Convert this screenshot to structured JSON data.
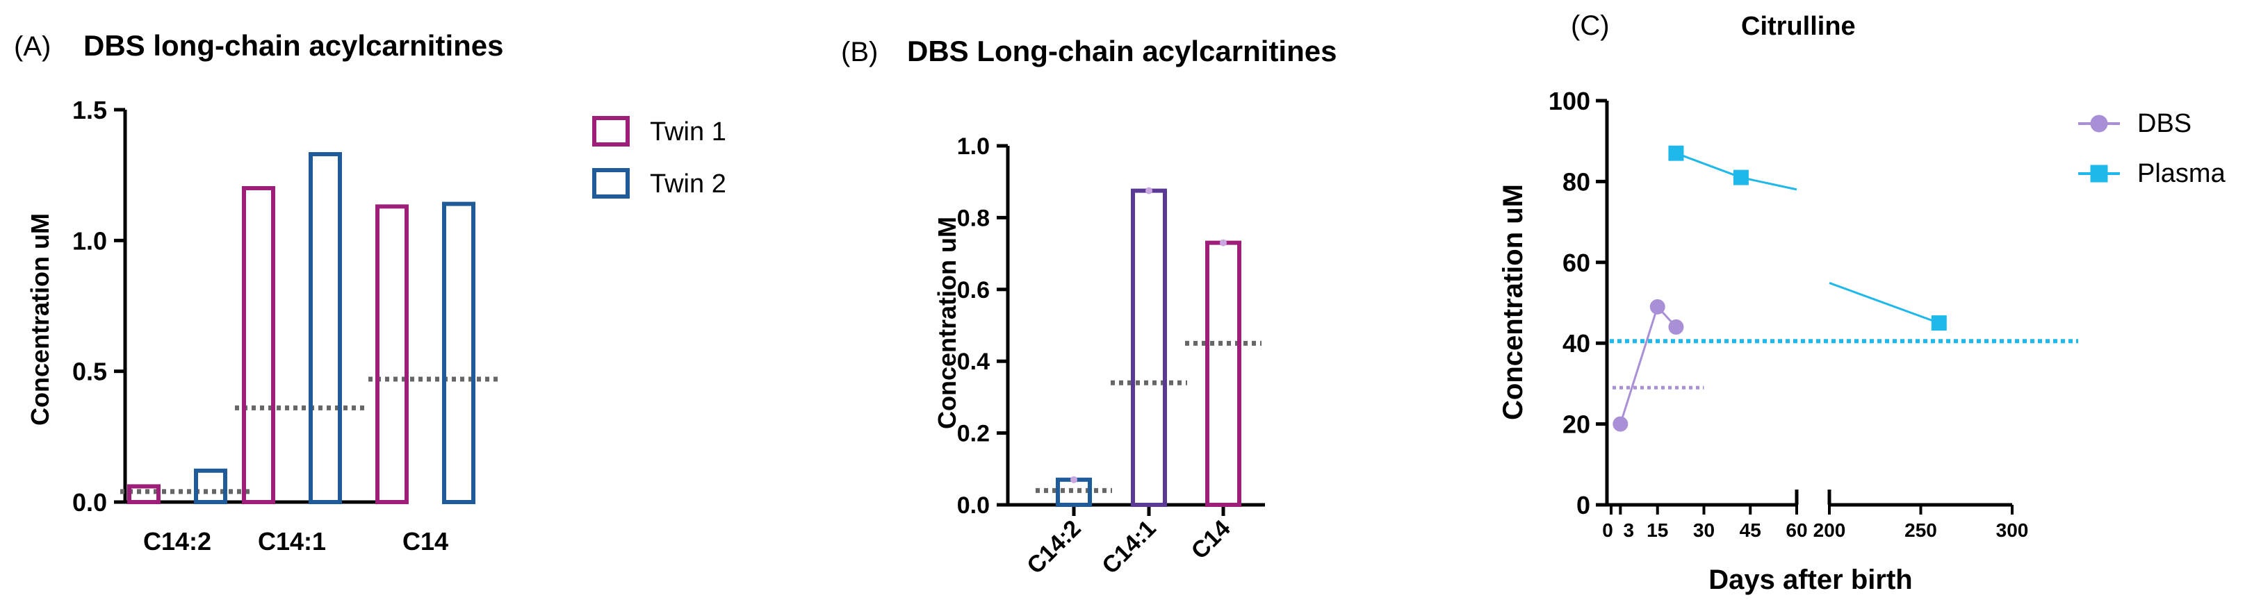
{
  "panels": [
    {
      "panel_label": "(A)",
      "title": "DBS long-chain acylcarnitines"
    },
    {
      "panel_label": "(B)",
      "title": "DBS Long-chain acylcarnitines"
    },
    {
      "panel_label": "(C)",
      "title": "Citrulline"
    }
  ],
  "colors": {
    "twin1": "#9e1f7a",
    "twin2": "#1f5a99",
    "purple_bar": "#5b3a96",
    "dbs": "#a98fd6",
    "plasma": "#1fb8ea",
    "reference_line": "#666666",
    "axis": "#000000"
  },
  "chart_data": [
    {
      "type": "bar",
      "title": "DBS long-chain acylcarnitines",
      "ylabel": "Concentration uM",
      "xlabel": "",
      "categories": [
        "C14:2",
        "C14:1",
        "C14"
      ],
      "series": [
        {
          "name": "Twin 1",
          "values": [
            0.06,
            1.2,
            1.13
          ]
        },
        {
          "name": "Twin 2",
          "values": [
            0.12,
            1.33,
            1.14
          ]
        }
      ],
      "reference_lines": [
        0.04,
        0.36,
        0.47
      ],
      "ylim": [
        0,
        1.5
      ],
      "yticks": [
        "0.0",
        "0.5",
        "1.0",
        "1.5"
      ],
      "legend": "right",
      "grid": false
    },
    {
      "type": "bar",
      "title": "DBS Long-chain acylcarnitines",
      "ylabel": "Concentration uM",
      "xlabel": "",
      "categories": [
        "C14:2",
        "C14:1",
        "C14"
      ],
      "values": [
        0.07,
        0.875,
        0.73
      ],
      "reference_lines": [
        0.04,
        0.34,
        0.45
      ],
      "ylim": [
        0,
        1.0
      ],
      "yticks": [
        "0.0",
        "0.2",
        "0.4",
        "0.6",
        "0.8",
        "1.0"
      ],
      "grid": false
    },
    {
      "type": "line",
      "title": "Citrulline",
      "ylabel": "Concentration uM",
      "xlabel": "Days after birth",
      "ylim": [
        0,
        100
      ],
      "yticks": [
        "0",
        "20",
        "40",
        "60",
        "80",
        "100"
      ],
      "xticks_segment1": [
        "0",
        "3",
        "15",
        "30",
        "45",
        "60"
      ],
      "xticks_segment2": [
        "200",
        "250",
        "300"
      ],
      "x_axis_break": [
        60,
        200
      ],
      "series": [
        {
          "name": "DBS",
          "x": [
            3,
            15,
            21
          ],
          "y": [
            20,
            49,
            44
          ],
          "marker": "circle"
        },
        {
          "name": "Plasma",
          "x": [
            21,
            42,
            260
          ],
          "y": [
            87,
            81,
            45
          ],
          "marker": "square"
        }
      ],
      "reference_lines": [
        {
          "series": "DBS",
          "y": 29,
          "x_end": 30
        },
        {
          "series": "Plasma",
          "y": 40.5
        }
      ],
      "legend": "top-right",
      "grid": false
    }
  ]
}
